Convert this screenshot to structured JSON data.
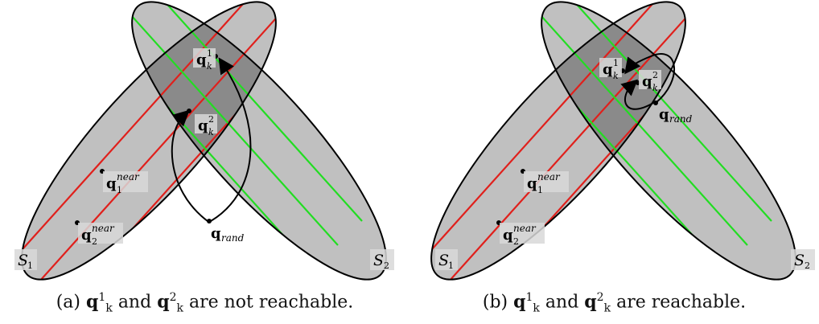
{
  "panels": [
    {
      "id": "a",
      "caption": {
        "prefix": "(a)",
        "q": "q",
        "k": "k",
        "sup1": "1",
        "sup2": "2",
        "and": "and",
        "rest": "are not reachable."
      },
      "labels": {
        "qk1": {
          "base": "q",
          "sub": "k",
          "sup": "1"
        },
        "qk2": {
          "base": "q",
          "sub": "k",
          "sup": "2"
        },
        "q1near": {
          "base": "q",
          "sub": "1",
          "sup": "near"
        },
        "q2near": {
          "base": "q",
          "sub": "2",
          "sup": "near"
        },
        "qrand": {
          "base": "q",
          "sub": "rand"
        },
        "s1": {
          "base": "S",
          "sub": "1"
        },
        "s2": {
          "base": "S",
          "sub": "2"
        }
      }
    },
    {
      "id": "b",
      "caption": {
        "prefix": "(b)",
        "q": "q",
        "k": "k",
        "sup1": "1",
        "sup2": "2",
        "and": "and",
        "rest": "are reachable."
      },
      "labels": {
        "qk1": {
          "base": "q",
          "sub": "k",
          "sup": "1"
        },
        "qk2": {
          "base": "q",
          "sub": "k",
          "sup": "2"
        },
        "q1near": {
          "base": "q",
          "sub": "1",
          "sup": "near"
        },
        "q2near": {
          "base": "q",
          "sub": "2",
          "sup": "near"
        },
        "qrand": {
          "base": "q",
          "sub": "rand"
        },
        "s1": {
          "base": "S",
          "sub": "1"
        },
        "s2": {
          "base": "S",
          "sub": "2"
        }
      }
    }
  ],
  "colors": {
    "ellipse_fill": "#c0c0c0",
    "overlap_fill": "#8a8a8a",
    "red_lines": "#e0201c",
    "green_lines": "#22dd22",
    "outline": "#000000"
  }
}
